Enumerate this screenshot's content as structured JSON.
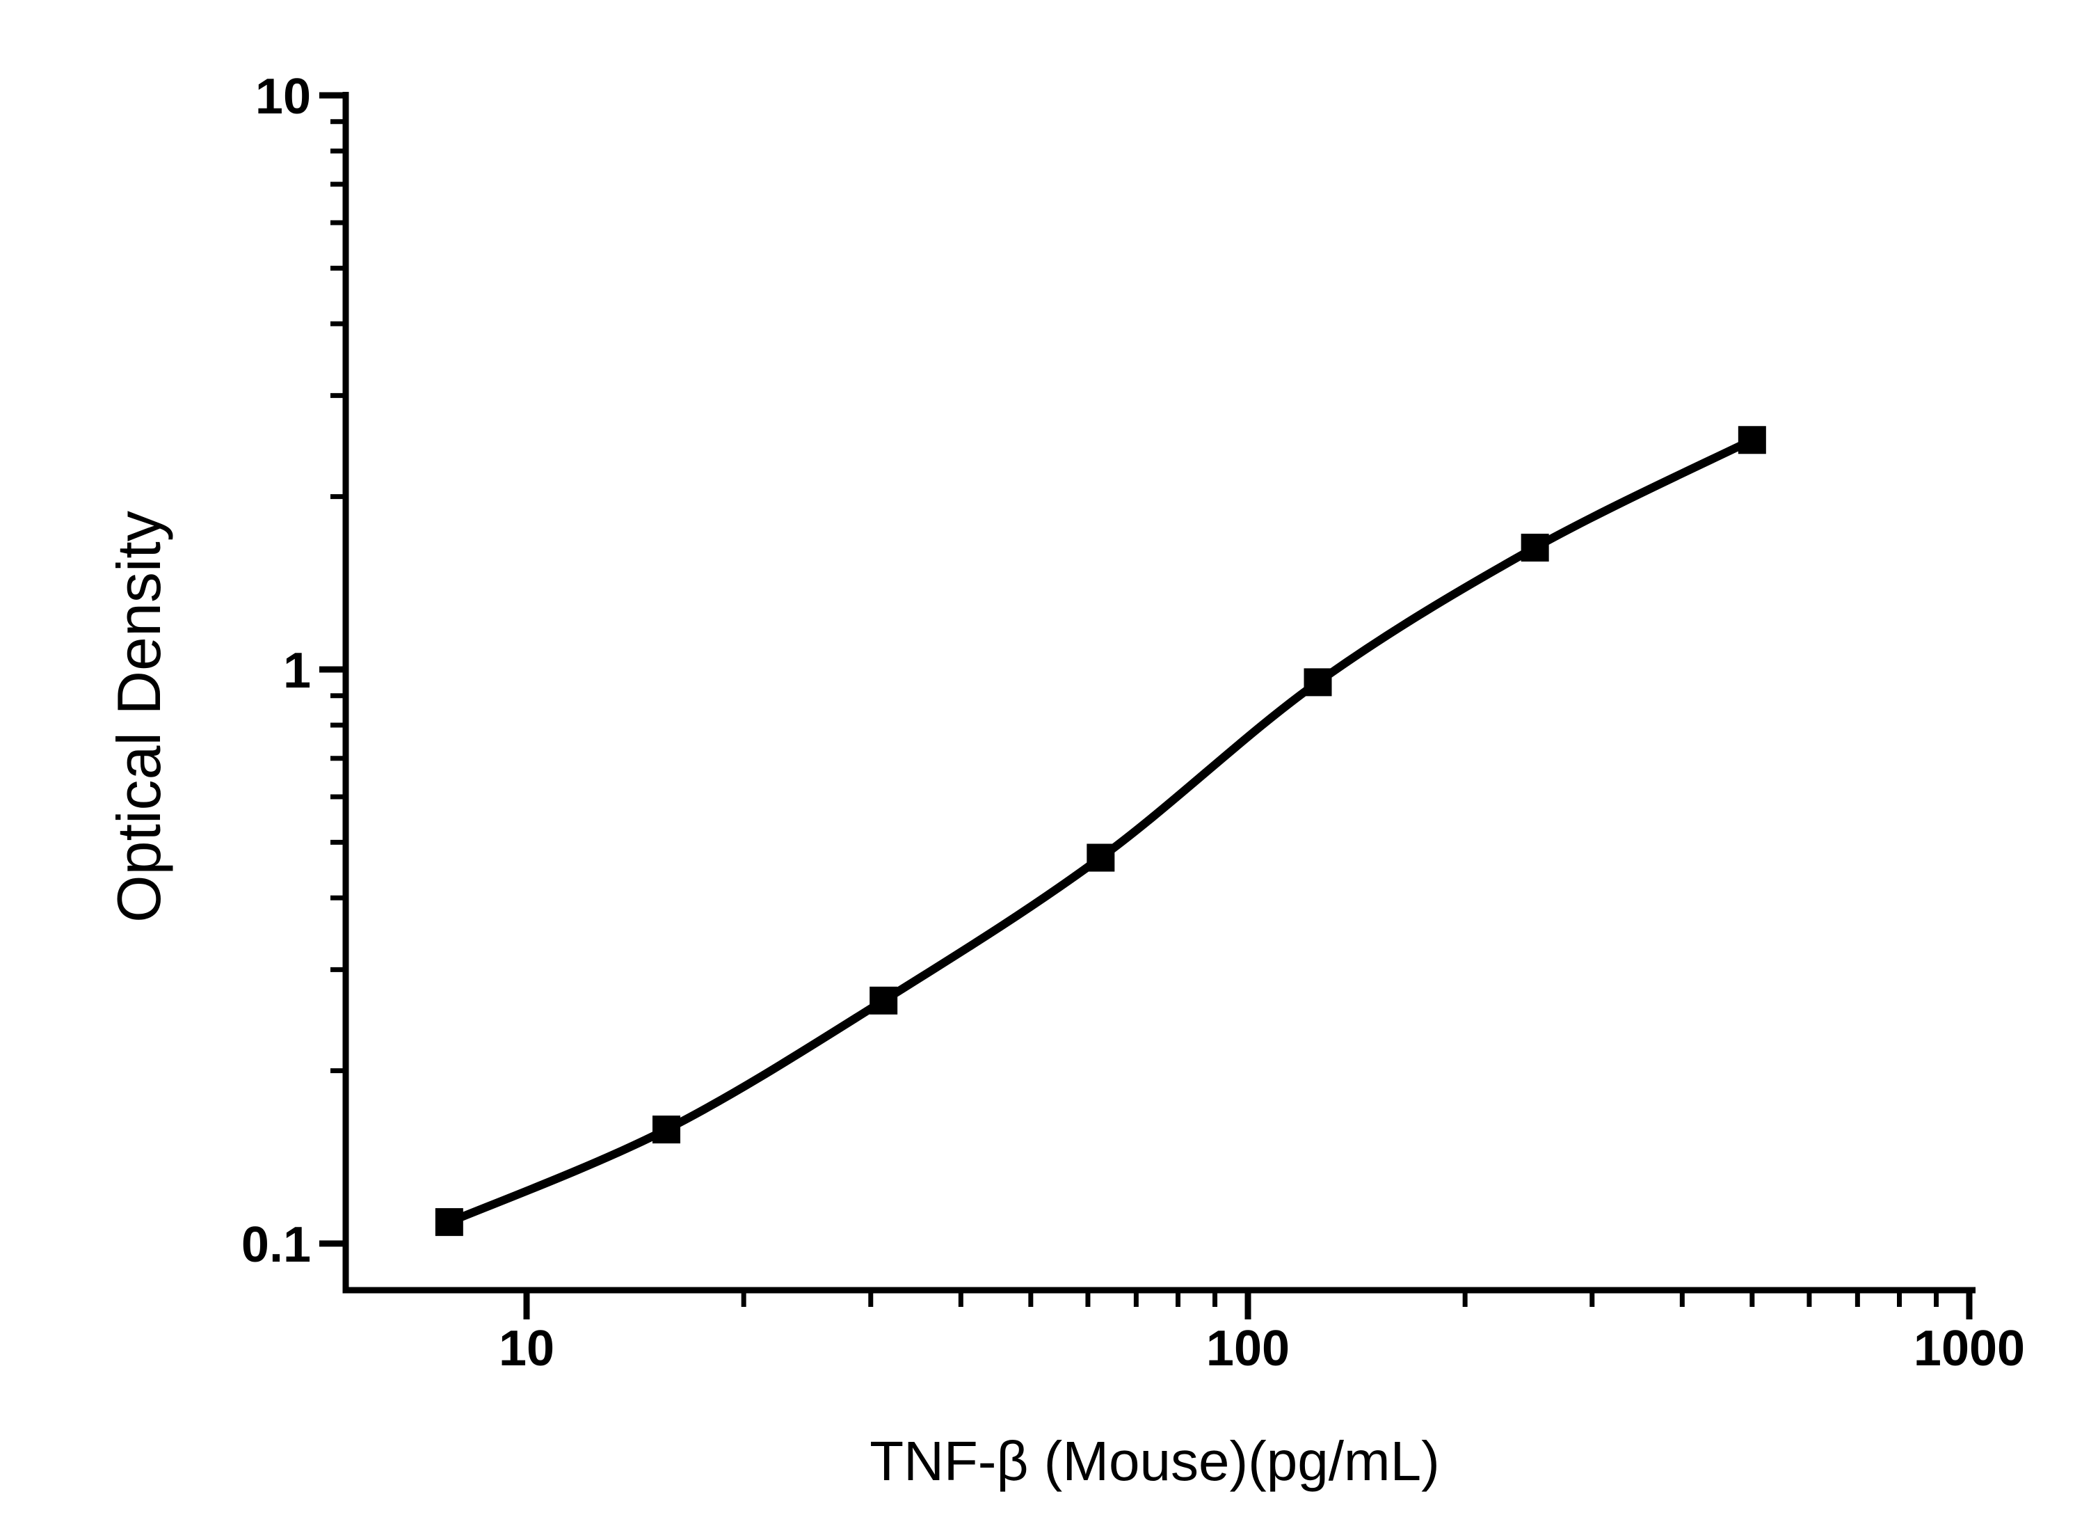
{
  "chart_data": {
    "type": "line",
    "title": "",
    "xlabel": "TNF-β (Mouse)(pg/mL)",
    "ylabel": "Optical Density",
    "x_scale": "log",
    "y_scale": "log",
    "xlim": [
      5.6,
      1020
    ],
    "ylim": [
      0.082,
      10.1
    ],
    "grid": false,
    "legend": "none",
    "marker": "filled-square",
    "line_color": "#000000",
    "marker_color": "#000000",
    "background_color": "#ffffff",
    "x": [
      7.8125,
      15.625,
      31.25,
      62.5,
      125,
      250,
      500
    ],
    "y": [
      0.109,
      0.158,
      0.265,
      0.47,
      0.95,
      1.63,
      2.51
    ],
    "x_major_ticks": [
      10,
      100,
      1000
    ],
    "x_major_tick_labels": [
      "10",
      "100",
      "1000"
    ],
    "x_minor_ticks": [
      20,
      30,
      40,
      50,
      60,
      70,
      80,
      90,
      200,
      300,
      400,
      500,
      600,
      700,
      800,
      900
    ],
    "y_major_ticks": [
      10,
      1,
      0.1
    ],
    "y_major_tick_labels": [
      "10",
      "1",
      "0.1"
    ],
    "y_minor_ticks": [
      9,
      8,
      7,
      6,
      5,
      4,
      3,
      2,
      0.9,
      0.8,
      0.7,
      0.6,
      0.5,
      0.4,
      0.3,
      0.2
    ]
  }
}
